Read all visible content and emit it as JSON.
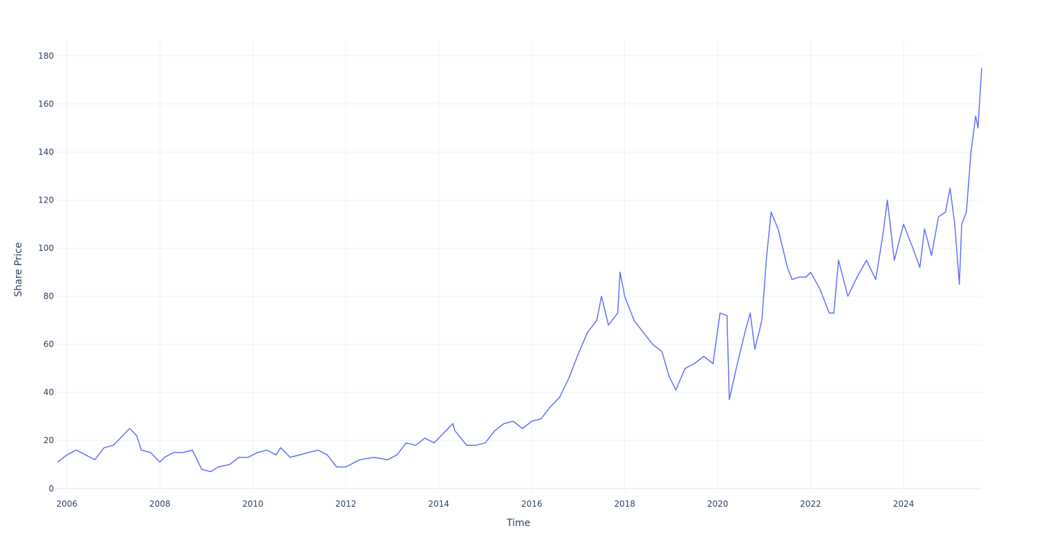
{
  "chart_data": {
    "type": "line",
    "xlabel": "Time",
    "ylabel": "Share Price",
    "xlim": [
      2005.75,
      2025.68
    ],
    "ylim": [
      -1.5,
      186
    ],
    "x_ticks": [
      2006,
      2008,
      2010,
      2012,
      2014,
      2016,
      2018,
      2020,
      2022,
      2024
    ],
    "x_tick_labels": [
      "2006",
      "2008",
      "2010",
      "2012",
      "2014",
      "2016",
      "2018",
      "2020",
      "2022",
      "2024"
    ],
    "y_ticks": [
      0,
      20,
      40,
      60,
      80,
      100,
      120,
      140,
      160,
      180
    ],
    "y_tick_labels": [
      "0",
      "20",
      "40",
      "60",
      "80",
      "100",
      "120",
      "140",
      "160",
      "180"
    ],
    "grid": true,
    "legend": "none",
    "series": [
      {
        "color": "#636efa",
        "x": [
          2005.8,
          2006.0,
          2006.2,
          2006.4,
          2006.6,
          2006.8,
          2007.0,
          2007.2,
          2007.35,
          2007.5,
          2007.6,
          2007.8,
          2008.0,
          2008.1,
          2008.3,
          2008.5,
          2008.7,
          2008.9,
          2009.1,
          2009.25,
          2009.5,
          2009.7,
          2009.9,
          2010.1,
          2010.3,
          2010.5,
          2010.6,
          2010.8,
          2011.0,
          2011.2,
          2011.4,
          2011.6,
          2011.8,
          2012.0,
          2012.3,
          2012.6,
          2012.9,
          2013.1,
          2013.3,
          2013.5,
          2013.7,
          2013.9,
          2014.1,
          2014.3,
          2014.35,
          2014.6,
          2014.8,
          2015.0,
          2015.2,
          2015.4,
          2015.6,
          2015.8,
          2016.0,
          2016.2,
          2016.4,
          2016.6,
          2016.8,
          2017.0,
          2017.2,
          2017.4,
          2017.5,
          2017.65,
          2017.85,
          2017.9,
          2018.0,
          2018.2,
          2018.4,
          2018.6,
          2018.8,
          2018.95,
          2019.1,
          2019.3,
          2019.5,
          2019.7,
          2019.9,
          2020.05,
          2020.2,
          2020.25,
          2020.4,
          2020.6,
          2020.7,
          2020.8,
          2020.95,
          2021.05,
          2021.15,
          2021.3,
          2021.5,
          2021.6,
          2021.75,
          2021.9,
          2022.0,
          2022.2,
          2022.4,
          2022.5,
          2022.6,
          2022.8,
          2023.0,
          2023.2,
          2023.4,
          2023.55,
          2023.65,
          2023.8,
          2024.0,
          2024.2,
          2024.35,
          2024.45,
          2024.6,
          2024.75,
          2024.9,
          2025.0,
          2025.1,
          2025.2,
          2025.25,
          2025.35,
          2025.45,
          2025.55,
          2025.6,
          2025.68
        ],
        "y": [
          11,
          14,
          16,
          14,
          12,
          17,
          18,
          22,
          25,
          22,
          16,
          15,
          11,
          13,
          15,
          15,
          16,
          8,
          7,
          9,
          10,
          13,
          13,
          15,
          16,
          14,
          17,
          13,
          14,
          15,
          16,
          14,
          9,
          9,
          12,
          13,
          12,
          14,
          19,
          18,
          21,
          19,
          23,
          27,
          24,
          18,
          18,
          19,
          24,
          27,
          28,
          25,
          28,
          29,
          34,
          38,
          46,
          56,
          65,
          70,
          80,
          68,
          73,
          90,
          80,
          70,
          65,
          60,
          57,
          47,
          41,
          50,
          52,
          55,
          52,
          73,
          72,
          37,
          50,
          66,
          73,
          58,
          70,
          96,
          115,
          108,
          92,
          87,
          88,
          88,
          90,
          83,
          73,
          73,
          95,
          80,
          88,
          95,
          87,
          105,
          120,
          95,
          110,
          100,
          92,
          108,
          97,
          113,
          115,
          125,
          110,
          85,
          110,
          115,
          140,
          155,
          150,
          175
        ]
      }
    ]
  }
}
